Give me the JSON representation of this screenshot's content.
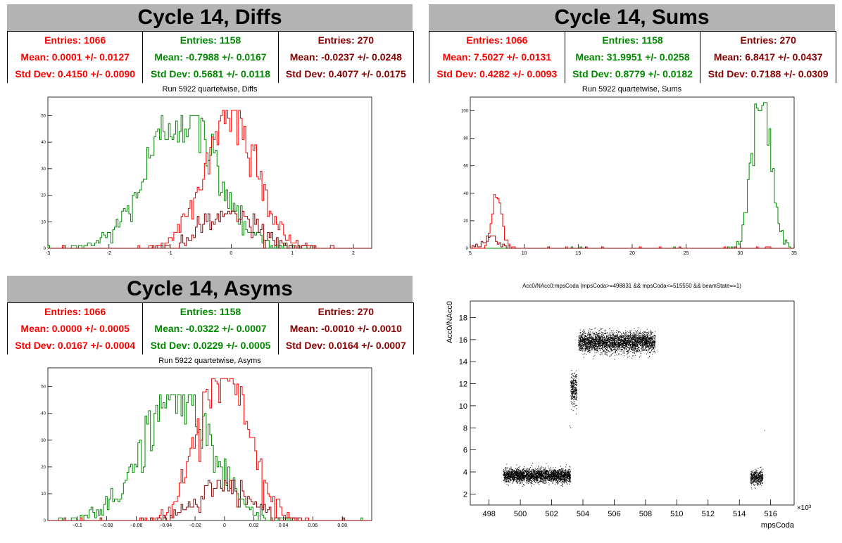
{
  "colors": {
    "red": "#ff0000",
    "green": "#008800",
    "darkred": "#880000",
    "header": "#b3b3b3"
  },
  "panels": [
    {
      "id": "diffs",
      "title": "Cycle 14, Diffs",
      "stats": [
        {
          "entries": "Entries: 1066",
          "mean": "Mean: 0.0001 +/- 0.0127",
          "std": "Std Dev: 0.4150 +/- 0.0090",
          "color": "red"
        },
        {
          "entries": "Entries: 1158",
          "mean": "Mean: -0.7988 +/- 0.0167",
          "std": "Std Dev: 0.5681 +/- 0.0118",
          "color": "green"
        },
        {
          "entries": "Entries: 270",
          "mean": "Mean: -0.0237 +/- 0.0248",
          "std": "Std Dev: 0.4077 +/- 0.0175",
          "color": "darkred"
        }
      ],
      "subtitle": "Run 5922 quartetwise, Diffs"
    },
    {
      "id": "sums",
      "title": "Cycle 14, Sums",
      "stats": [
        {
          "entries": "Entries: 1066",
          "mean": "Mean: 7.5027 +/- 0.0131",
          "std": "Std Dev: 0.4282 +/- 0.0093",
          "color": "red"
        },
        {
          "entries": "Entries: 1158",
          "mean": "Mean: 31.9951 +/- 0.0258",
          "std": "Std Dev: 0.8779 +/- 0.0182",
          "color": "green"
        },
        {
          "entries": "Entries: 270",
          "mean": "Mean: 6.8417 +/- 0.0437",
          "std": "Std Dev: 0.7188 +/- 0.0309",
          "color": "darkred"
        }
      ],
      "subtitle": "Run 5922 quartetwise, Sums"
    },
    {
      "id": "asyms",
      "title": "Cycle 14, Asyms",
      "stats": [
        {
          "entries": "Entries: 1066",
          "mean": "Mean: 0.0000 +/- 0.0005",
          "std": "Std Dev: 0.0167 +/- 0.0004",
          "color": "red"
        },
        {
          "entries": "Entries: 1158",
          "mean": "Mean: -0.0322 +/- 0.0007",
          "std": "Std Dev: 0.0229 +/- 0.0005",
          "color": "green"
        },
        {
          "entries": "Entries: 270",
          "mean": "Mean: -0.0010 +/- 0.0010",
          "std": "Std Dev: 0.0164 +/- 0.0007",
          "color": "darkred"
        }
      ],
      "subtitle": "Run 5922 quartetwise, Asyms"
    }
  ],
  "chart_data": [
    {
      "id": "diffs-hist",
      "type": "histogram",
      "xlim": [
        -3,
        2.3
      ],
      "ylim": [
        0,
        57
      ],
      "xticks": [
        "-3",
        "-2",
        "-1",
        "0",
        "1",
        "2"
      ],
      "yticks": [
        "0",
        "10",
        "20",
        "30",
        "40",
        "50"
      ],
      "series": [
        {
          "color": "green",
          "mean": -0.7988,
          "std": 0.5681,
          "peak": 50
        },
        {
          "color": "red",
          "mean": 0.0001,
          "std": 0.415,
          "peak": 52
        },
        {
          "color": "darkred",
          "mean": -0.0237,
          "std": 0.4077,
          "peak": 14
        }
      ]
    },
    {
      "id": "sums-hist",
      "type": "histogram",
      "xlim": [
        5,
        35
      ],
      "ylim": [
        0,
        110
      ],
      "xticks": [
        "5",
        "10",
        "15",
        "20",
        "25",
        "30",
        "35"
      ],
      "yticks": [
        "0",
        "20",
        "40",
        "60",
        "80",
        "100"
      ],
      "series": [
        {
          "color": "green",
          "mean": 31.9951,
          "std": 0.8779,
          "peak": 106
        },
        {
          "color": "red",
          "mean": 7.5027,
          "std": 0.4282,
          "peak": 39
        },
        {
          "color": "darkred",
          "mean": 6.8417,
          "std": 0.7188,
          "peak": 9
        }
      ]
    },
    {
      "id": "asyms-hist",
      "type": "histogram",
      "xlim": [
        -0.12,
        0.1
      ],
      "ylim": [
        0,
        57
      ],
      "xticks": [
        "−0.1",
        "−0.08",
        "−0.06",
        "−0.04",
        "−0.02",
        "0",
        "0.02",
        "0.04",
        "0.06",
        "0.08"
      ],
      "yticks": [
        "0",
        "10",
        "20",
        "30",
        "40",
        "50"
      ],
      "series": [
        {
          "color": "green",
          "mean": -0.0322,
          "std": 0.0229,
          "peak": 47
        },
        {
          "color": "red",
          "mean": 0.0,
          "std": 0.0167,
          "peak": 53
        },
        {
          "color": "darkred",
          "mean": -0.001,
          "std": 0.0164,
          "peak": 15
        }
      ]
    },
    {
      "id": "scatter",
      "type": "scatter",
      "title": "Acc0/NAcc0:mpsCoda (mpsCoda>=498831 && mpsCoda<=515550 && beamState==1)",
      "xlabel": "mpsCoda",
      "ylabel": "Acc0/NAcc0",
      "xexp": "×10³",
      "xlim": [
        496.8,
        517.5
      ],
      "ylim": [
        1,
        19.5
      ],
      "xticks": [
        "498",
        "500",
        "502",
        "504",
        "506",
        "508",
        "510",
        "512",
        "514",
        "516"
      ],
      "yticks": [
        "2",
        "4",
        "6",
        "8",
        "10",
        "12",
        "14",
        "16",
        "18"
      ],
      "clusters": [
        {
          "x": [
            498.9,
            503.2
          ],
          "ymean": 3.7,
          "yspread": 0.55,
          "n": 2600
        },
        {
          "x": [
            503.2,
            503.6
          ],
          "ymean": 11.5,
          "yspread": 1.3,
          "n": 260
        },
        {
          "x": [
            503.7,
            508.6
          ],
          "ymean": 15.8,
          "yspread": 0.8,
          "n": 3000
        },
        {
          "x": [
            514.7,
            515.5
          ],
          "ymean": 3.5,
          "yspread": 0.6,
          "n": 380
        }
      ],
      "outliers": [
        [
          503.15,
          8.2
        ],
        [
          503.2,
          8.05
        ],
        [
          515.6,
          7.8
        ]
      ]
    }
  ]
}
